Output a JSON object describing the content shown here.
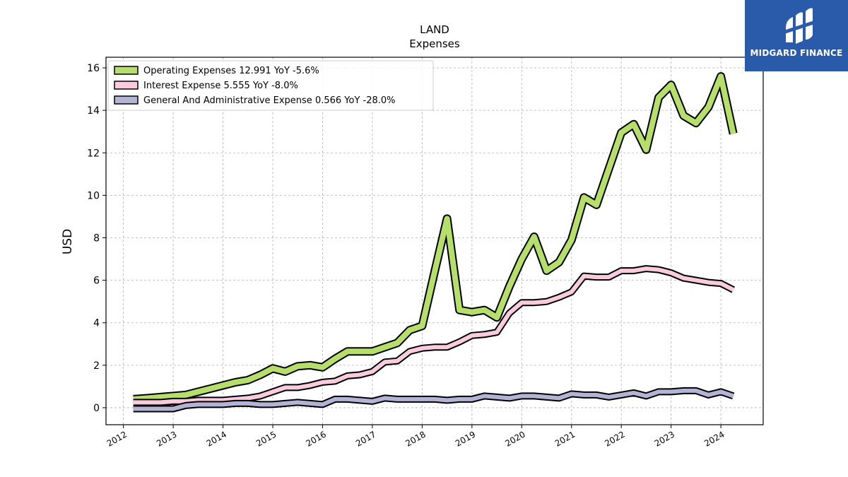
{
  "logo": {
    "text": "MIDGARD FINANCE",
    "icon": "midgard-logo-icon",
    "background": "#2a5bab"
  },
  "chart_data": {
    "type": "line",
    "title": "LAND",
    "subtitle": "Expenses",
    "xlabel": "",
    "ylabel": "USD",
    "ylim": [
      -0.8,
      16.5
    ],
    "xlim": [
      2011.65,
      2024.85
    ],
    "yticks": [
      0,
      2,
      4,
      6,
      8,
      10,
      12,
      14,
      16
    ],
    "xticks": [
      2012,
      2013,
      2014,
      2015,
      2016,
      2017,
      2018,
      2019,
      2020,
      2021,
      2022,
      2023,
      2024
    ],
    "grid": true,
    "legend_position": "top-left",
    "series": [
      {
        "name": "Operating Expenses  12.991 YoY -5.6%",
        "color": "#b5de6a",
        "width": 8,
        "x": [
          2012.2,
          2012.5,
          2012.75,
          2013.0,
          2013.25,
          2013.5,
          2013.75,
          2014.0,
          2014.25,
          2014.5,
          2014.75,
          2015.0,
          2015.25,
          2015.5,
          2015.75,
          2016.0,
          2016.25,
          2016.5,
          2016.75,
          2017.0,
          2017.25,
          2017.5,
          2017.75,
          2018.0,
          2018.25,
          2018.5,
          2018.75,
          2019.0,
          2019.25,
          2019.5,
          2019.75,
          2020.0,
          2020.25,
          2020.5,
          2020.75,
          2021.0,
          2021.25,
          2021.5,
          2021.75,
          2022.0,
          2022.25,
          2022.5,
          2022.75,
          2023.0,
          2023.25,
          2023.5,
          2023.75,
          2024.0,
          2024.25
        ],
        "y": [
          0.4,
          0.45,
          0.5,
          0.55,
          0.6,
          0.75,
          0.9,
          1.05,
          1.2,
          1.3,
          1.55,
          1.85,
          1.7,
          1.95,
          2.0,
          1.9,
          2.3,
          2.65,
          2.65,
          2.65,
          2.85,
          3.05,
          3.65,
          3.85,
          6.4,
          8.9,
          4.6,
          4.5,
          4.6,
          4.25,
          5.7,
          7.0,
          8.05,
          6.45,
          6.85,
          7.9,
          9.9,
          9.55,
          11.25,
          12.95,
          13.35,
          12.15,
          14.6,
          15.2,
          13.75,
          13.4,
          14.15,
          15.6,
          12.9
        ]
      },
      {
        "name": "Interest Expense  5.555 YoY -8.0%",
        "color": "#f9cbdc",
        "width": 6,
        "x": [
          2012.2,
          2012.5,
          2012.75,
          2013.0,
          2013.25,
          2013.5,
          2013.75,
          2014.0,
          2014.25,
          2014.5,
          2014.75,
          2015.0,
          2015.25,
          2015.5,
          2015.75,
          2016.0,
          2016.25,
          2016.5,
          2016.75,
          2017.0,
          2017.25,
          2017.5,
          2017.75,
          2018.0,
          2018.25,
          2018.5,
          2018.75,
          2019.0,
          2019.25,
          2019.5,
          2019.75,
          2020.0,
          2020.25,
          2020.5,
          2020.75,
          2021.0,
          2021.25,
          2021.5,
          2021.75,
          2022.0,
          2022.25,
          2022.5,
          2022.75,
          2023.0,
          2023.25,
          2023.5,
          2023.75,
          2024.0,
          2024.25
        ],
        "y": [
          0.25,
          0.25,
          0.25,
          0.3,
          0.3,
          0.35,
          0.35,
          0.35,
          0.4,
          0.45,
          0.55,
          0.75,
          0.95,
          0.95,
          1.05,
          1.2,
          1.25,
          1.5,
          1.55,
          1.7,
          2.15,
          2.2,
          2.65,
          2.8,
          2.85,
          2.85,
          3.1,
          3.4,
          3.45,
          3.55,
          4.45,
          4.95,
          4.95,
          5.0,
          5.2,
          5.45,
          6.2,
          6.15,
          6.15,
          6.45,
          6.45,
          6.55,
          6.5,
          6.35,
          6.1,
          6.0,
          5.9,
          5.85,
          5.55
        ]
      },
      {
        "name": "General And Administrative Expense  0.566 YoY -28.0%",
        "color": "#b3b3d6",
        "width": 6,
        "x": [
          2012.2,
          2012.5,
          2012.75,
          2013.0,
          2013.25,
          2013.5,
          2013.75,
          2014.0,
          2014.25,
          2014.5,
          2014.75,
          2015.0,
          2015.25,
          2015.5,
          2015.75,
          2016.0,
          2016.25,
          2016.5,
          2016.75,
          2017.0,
          2017.25,
          2017.5,
          2017.75,
          2018.0,
          2018.25,
          2018.5,
          2018.75,
          2019.0,
          2019.25,
          2019.5,
          2019.75,
          2020.0,
          2020.25,
          2020.5,
          2020.75,
          2021.0,
          2021.25,
          2021.5,
          2021.75,
          2022.0,
          2022.25,
          2022.5,
          2022.75,
          2023.0,
          2023.25,
          2023.5,
          2023.75,
          2024.0,
          2024.25
        ],
        "y": [
          -0.05,
          -0.05,
          -0.05,
          -0.05,
          0.1,
          0.15,
          0.15,
          0.15,
          0.2,
          0.2,
          0.15,
          0.15,
          0.2,
          0.25,
          0.2,
          0.15,
          0.4,
          0.4,
          0.35,
          0.3,
          0.45,
          0.4,
          0.4,
          0.4,
          0.4,
          0.35,
          0.4,
          0.4,
          0.55,
          0.5,
          0.45,
          0.55,
          0.55,
          0.5,
          0.45,
          0.65,
          0.6,
          0.6,
          0.5,
          0.6,
          0.7,
          0.55,
          0.75,
          0.75,
          0.8,
          0.8,
          0.6,
          0.75,
          0.55
        ]
      }
    ]
  }
}
